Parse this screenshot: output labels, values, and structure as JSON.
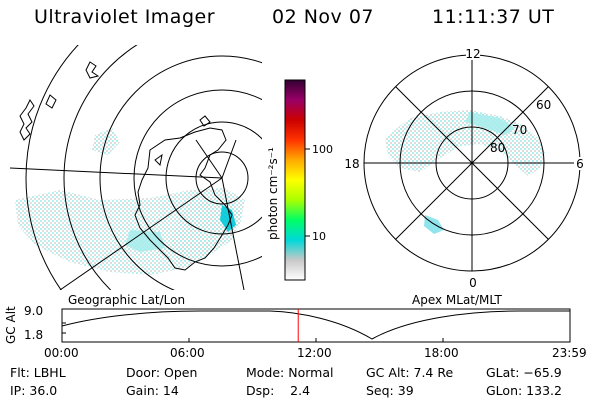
{
  "header": {
    "instrument": "Ultraviolet Imager",
    "date": "02 Nov 07",
    "time": "11:11:37 UT"
  },
  "geo_panel": {
    "label": "Geographic Lat/Lon"
  },
  "apex_panel": {
    "label": "Apex MLat/MLT",
    "mlt_labels": {
      "top": "12",
      "left": "18",
      "right": "6",
      "bottom": "0"
    },
    "lat_labels": [
      "60",
      "70",
      "80"
    ]
  },
  "colorbar": {
    "unit_label": "photon cm⁻²s⁻¹",
    "ticks": [
      "100",
      "10"
    ],
    "colors": [
      "#ffffff",
      "#c8c8c8",
      "#00d8d8",
      "#00ff66",
      "#aaff00",
      "#ffff00",
      "#ffaa00",
      "#ff3300",
      "#cc0000",
      "#990066",
      "#330033"
    ]
  },
  "altitude_plot": {
    "ylabel": "GC Alt",
    "y_ticks": [
      "9.0",
      "1.8"
    ],
    "x_ticks": [
      "00:00",
      "06:00",
      "12:00",
      "18:00",
      "23:59"
    ],
    "current_time_fraction": 0.465,
    "marker_color": "#ff0000"
  },
  "status": {
    "filter": "Flt: LBHL",
    "door": "Door: Open",
    "mode": "Mode: Normal",
    "gc_alt": "GC Alt: 7.4 Re",
    "glat": "GLat: −65.9",
    "ip": "IP: 36.0",
    "gain": "Gain: 14",
    "dsp": "Dsp:    2.4",
    "seq": "Seq: 39",
    "glon": "GLon: 133.2"
  }
}
